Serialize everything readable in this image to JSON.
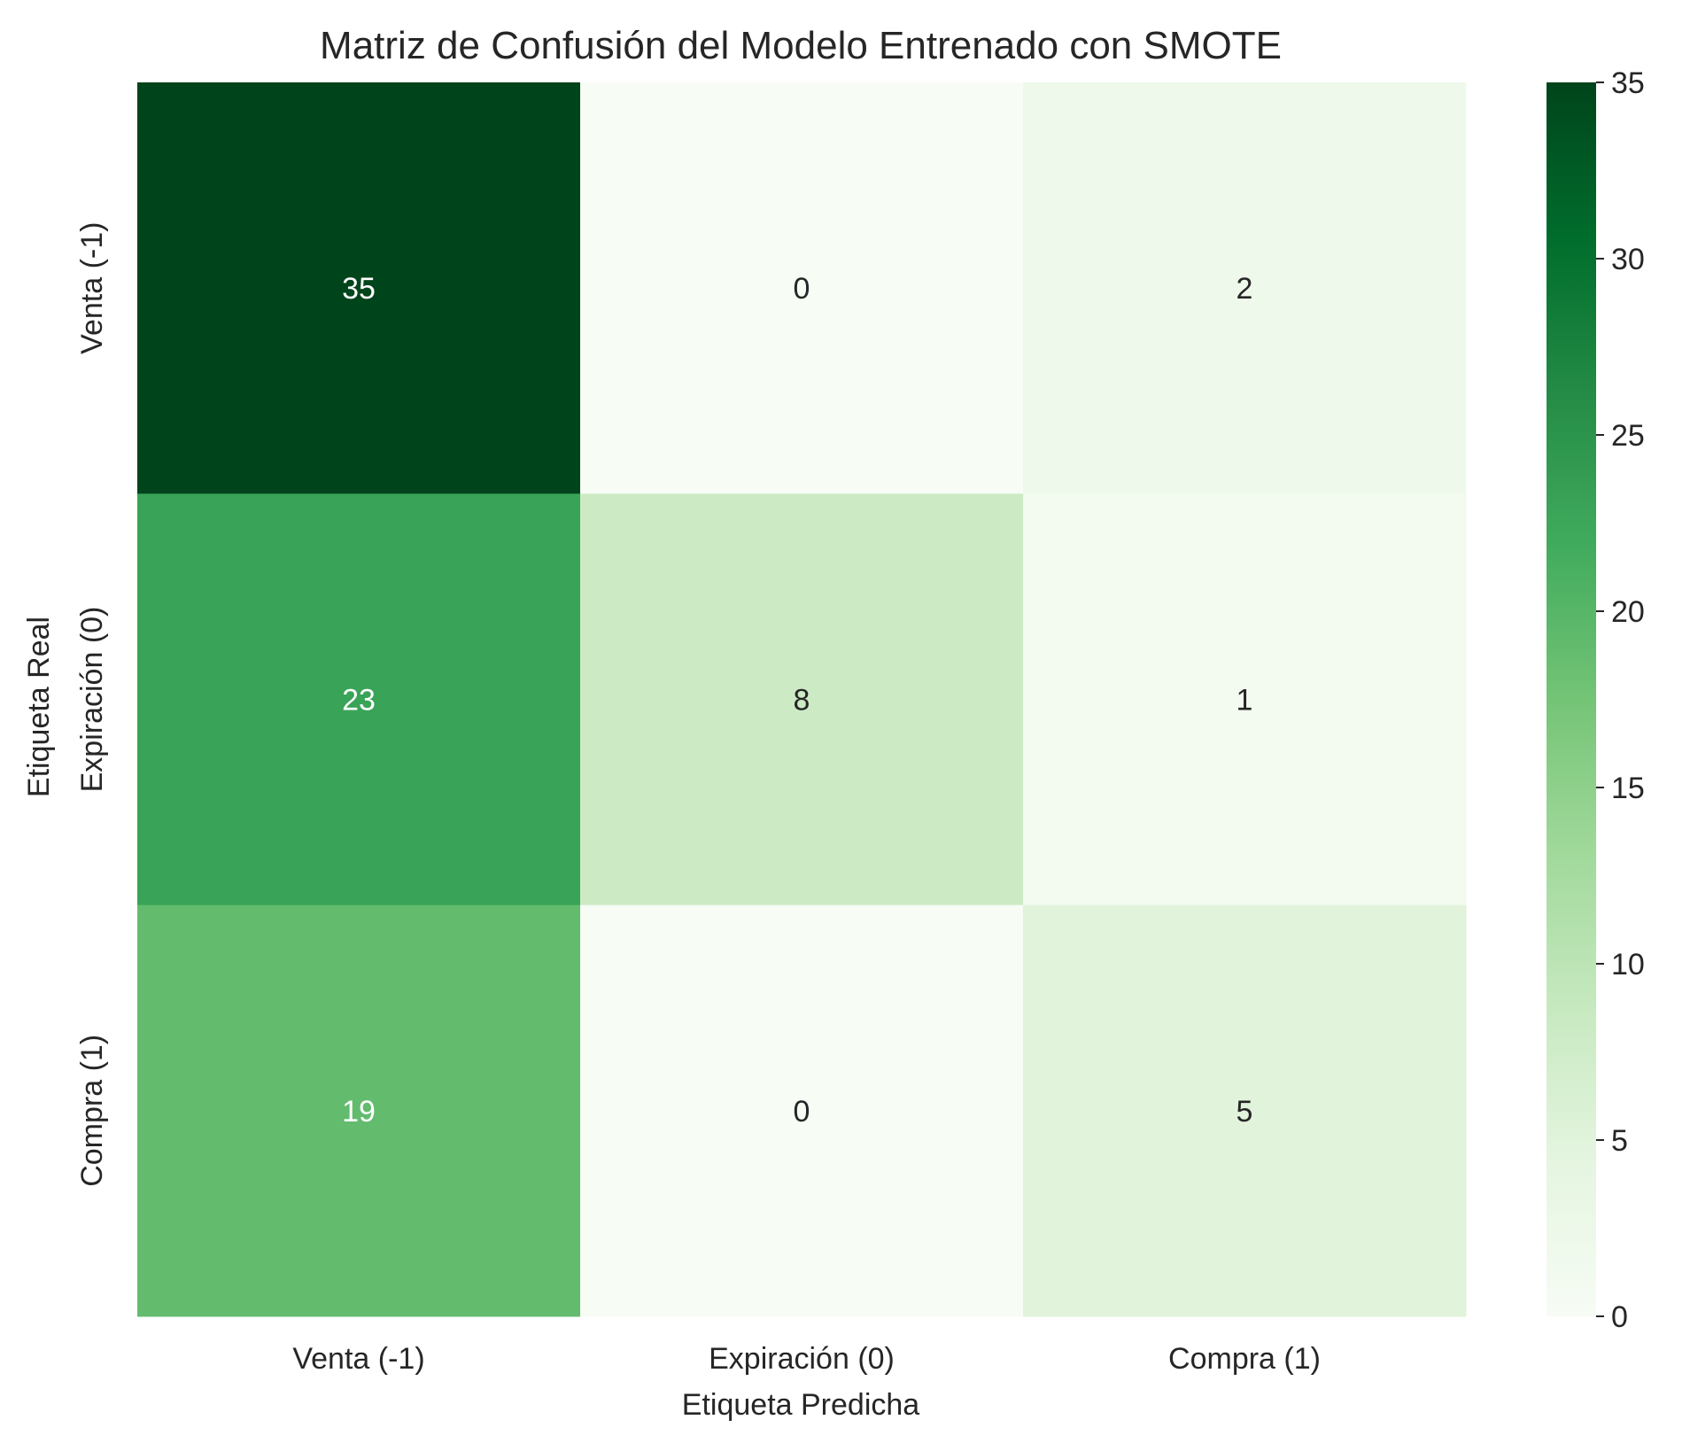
{
  "chart_data": {
    "type": "heatmap",
    "title": "Matriz de Confusión del Modelo Entrenado con SMOTE",
    "xlabel": "Etiqueta Predicha",
    "ylabel": "Etiqueta Real",
    "x_categories": [
      "Venta (-1)",
      "Expiración (0)",
      "Compra (1)"
    ],
    "y_categories": [
      "Venta (-1)",
      "Expiración (0)",
      "Compra (1)"
    ],
    "values": [
      [
        35,
        0,
        2
      ],
      [
        23,
        8,
        1
      ],
      [
        19,
        0,
        5
      ]
    ],
    "colormap": "Greens",
    "colorbar": {
      "range": [
        0,
        35
      ],
      "ticks": [
        0,
        5,
        10,
        15,
        20,
        25,
        30,
        35
      ]
    }
  }
}
